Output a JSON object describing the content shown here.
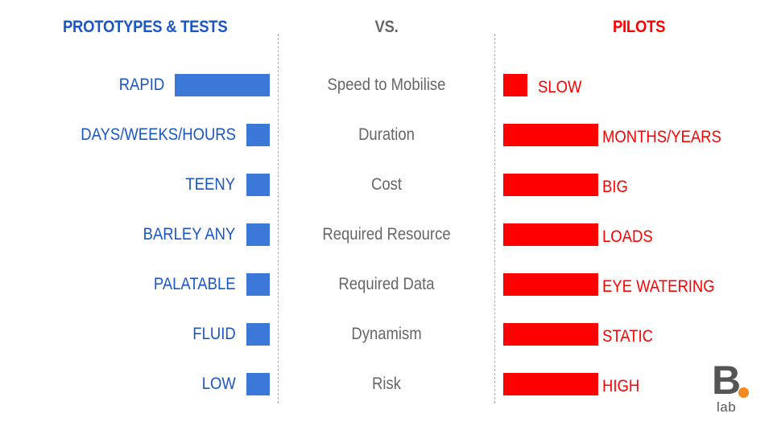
{
  "chart_data": {
    "type": "bar",
    "title": "",
    "headers": {
      "left": "PROTOTYPES & TESTS",
      "middle": "VS.",
      "right": "PILOTS"
    },
    "categories": [
      "Speed to Mobilise",
      "Duration",
      "Cost",
      "Required Resource",
      "Required Data",
      "Dynamism",
      "Risk"
    ],
    "series": [
      {
        "name": "PROTOTYPES & TESTS",
        "color": "#3c78d8",
        "labels": [
          "RAPID",
          "DAYS/WEEKS/HOURS",
          "TEENY",
          "BARLEY ANY",
          "PALATABLE",
          "FLUID",
          "LOW"
        ],
        "values": [
          4,
          1,
          1,
          1,
          1,
          1,
          1
        ]
      },
      {
        "name": "PILOTS",
        "color": "#ff0000",
        "labels": [
          "SLOW",
          "MONTHS/YEARS",
          "BIG",
          "LOADS",
          "EYE WATERING",
          "STATIC",
          "HIGH"
        ],
        "values": [
          1,
          4,
          4,
          4,
          4,
          4,
          4
        ]
      }
    ]
  },
  "logo": {
    "letter": "B",
    "text": "lab",
    "dot_color": "#f08c1e"
  }
}
